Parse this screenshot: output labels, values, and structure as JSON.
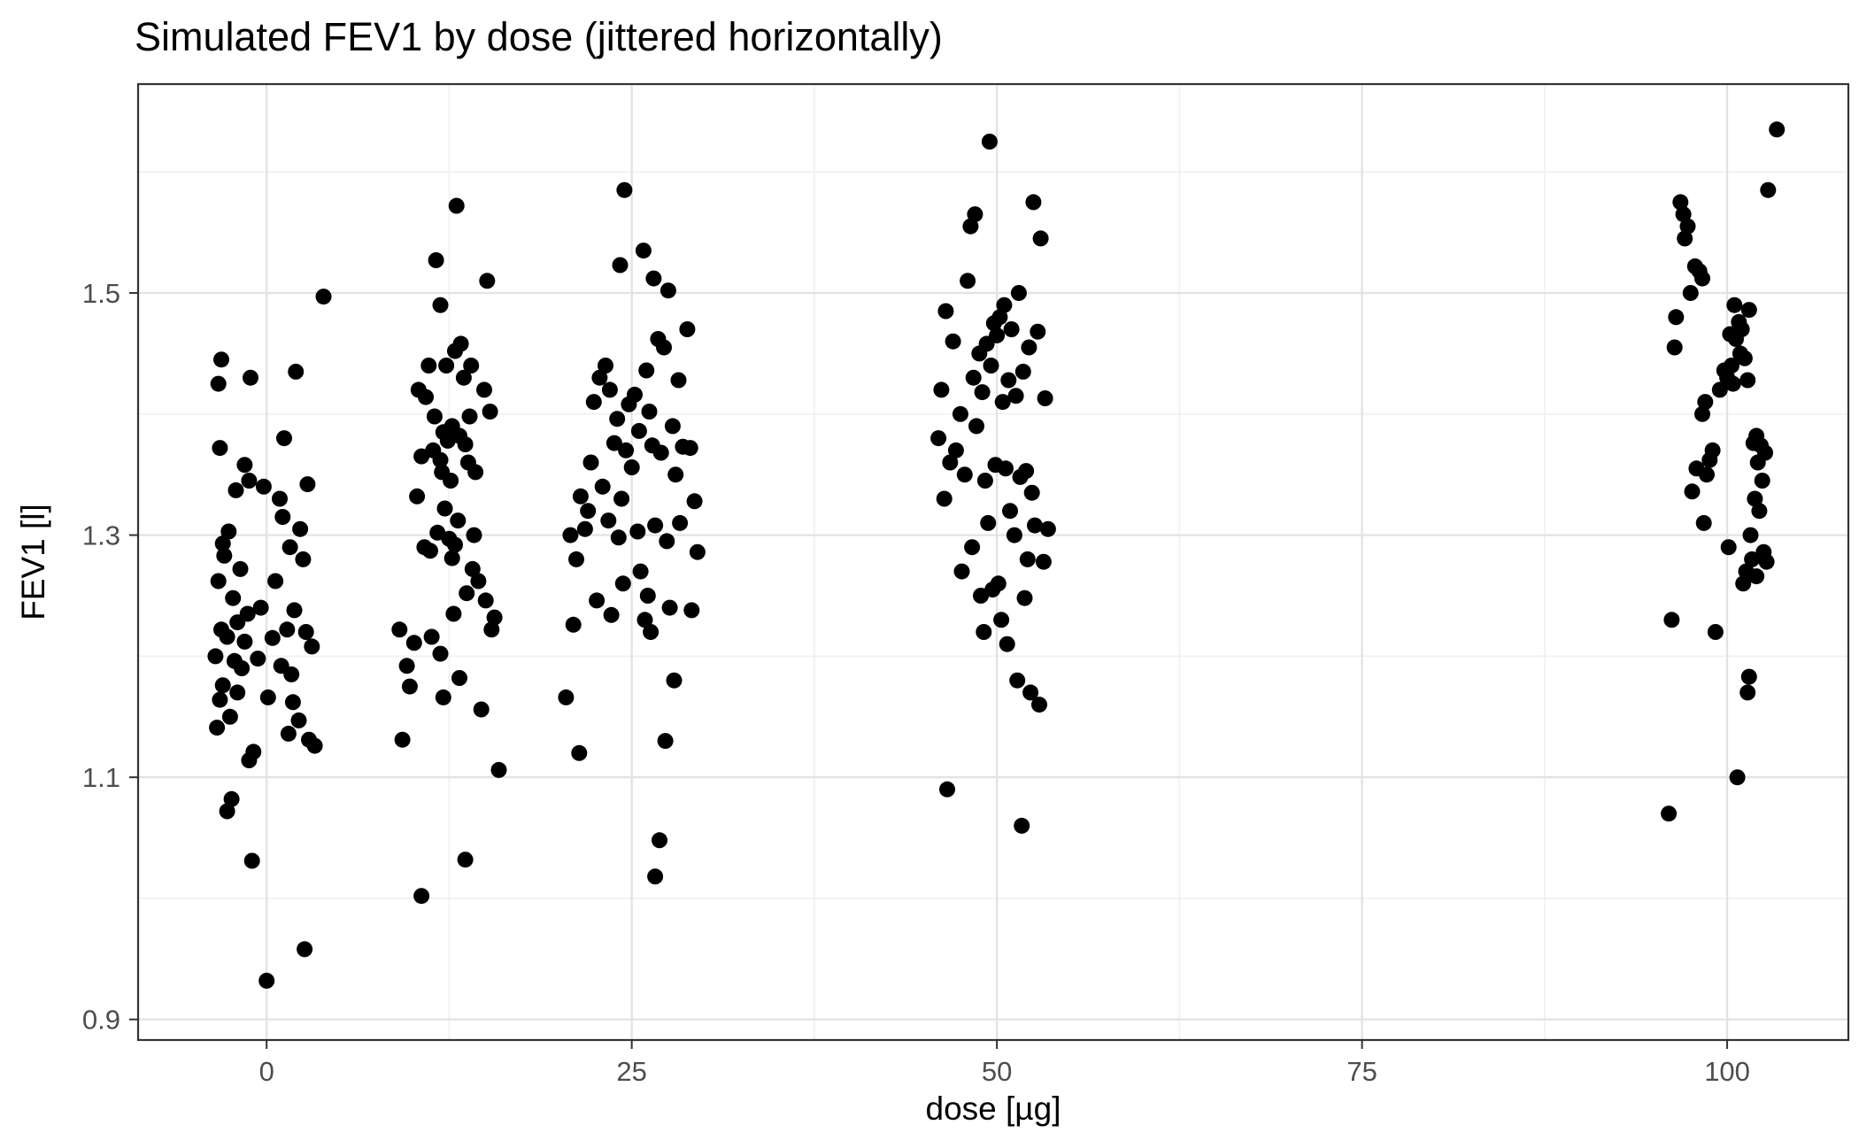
{
  "chart_data": {
    "type": "scatter",
    "title": "Simulated FEV1 by dose (jittered horizontally)",
    "xlabel": "dose [µg]",
    "ylabel": "FEV1 [l]",
    "xlim": [
      -8.8,
      108.3
    ],
    "ylim": [
      0.883,
      1.6725
    ],
    "grid": true,
    "legend": "none",
    "dose_groups": [
      0,
      12.5,
      25,
      50,
      100
    ],
    "x_ticks": [
      {
        "value": 0,
        "label": "0"
      },
      {
        "value": 25,
        "label": "25"
      },
      {
        "value": 50,
        "label": "50"
      },
      {
        "value": 75,
        "label": "75"
      },
      {
        "value": 100,
        "label": "100"
      }
    ],
    "y_ticks": [
      {
        "value": 0.9,
        "label": "0.9"
      },
      {
        "value": 1.1,
        "label": "1.1"
      },
      {
        "value": 1.3,
        "label": "1.3"
      },
      {
        "value": 1.5,
        "label": "1.5"
      }
    ],
    "x_minor": [
      12.5,
      37.5,
      62.5,
      87.5
    ],
    "y_minor": [
      1.0,
      1.2,
      1.4,
      1.6
    ],
    "colors": {
      "point": "#000000",
      "panel_border": "#333333",
      "grid_major": "#e2e2e2",
      "grid_minor": "#f0f0f0",
      "tick_label": "#4d4d4d",
      "tick_mark": "#333333",
      "background": "#ffffff"
    },
    "series": [
      {
        "name": "dose 0",
        "dose": 0,
        "points": [
          [
            -3.1,
            1.445
          ],
          [
            -3.3,
            1.425
          ],
          [
            -1.1,
            1.43
          ],
          [
            2.0,
            1.435
          ],
          [
            3.9,
            1.497
          ],
          [
            1.2,
            1.38
          ],
          [
            -3.2,
            1.372
          ],
          [
            -1.5,
            1.358
          ],
          [
            -1.2,
            1.345
          ],
          [
            -2.1,
            1.337
          ],
          [
            0.9,
            1.33
          ],
          [
            2.8,
            1.342
          ],
          [
            -0.2,
            1.34
          ],
          [
            1.1,
            1.315
          ],
          [
            2.3,
            1.305
          ],
          [
            -2.6,
            1.303
          ],
          [
            -3.0,
            1.293
          ],
          [
            1.6,
            1.29
          ],
          [
            -2.9,
            1.283
          ],
          [
            2.5,
            1.28
          ],
          [
            -1.8,
            1.272
          ],
          [
            -3.3,
            1.262
          ],
          [
            0.6,
            1.262
          ],
          [
            -2.3,
            1.248
          ],
          [
            -0.4,
            1.24
          ],
          [
            -1.3,
            1.235
          ],
          [
            1.9,
            1.238
          ],
          [
            -2.0,
            1.228
          ],
          [
            -3.1,
            1.222
          ],
          [
            -2.7,
            1.216
          ],
          [
            -1.5,
            1.212
          ],
          [
            0.4,
            1.215
          ],
          [
            1.4,
            1.222
          ],
          [
            2.7,
            1.22
          ],
          [
            3.1,
            1.208
          ],
          [
            -3.5,
            1.2
          ],
          [
            -2.2,
            1.196
          ],
          [
            -0.6,
            1.198
          ],
          [
            -1.7,
            1.19
          ],
          [
            1.0,
            1.192
          ],
          [
            1.7,
            1.185
          ],
          [
            -3.0,
            1.176
          ],
          [
            -2.0,
            1.17
          ],
          [
            -3.2,
            1.164
          ],
          [
            0.1,
            1.166
          ],
          [
            1.8,
            1.162
          ],
          [
            -2.5,
            1.15
          ],
          [
            2.2,
            1.147
          ],
          [
            -3.4,
            1.141
          ],
          [
            1.5,
            1.136
          ],
          [
            2.9,
            1.131
          ],
          [
            3.3,
            1.126
          ],
          [
            -0.9,
            1.121
          ],
          [
            -1.2,
            1.114
          ],
          [
            -2.4,
            1.082
          ],
          [
            -2.7,
            1.072
          ],
          [
            -1.0,
            1.031
          ],
          [
            2.6,
            0.958
          ],
          [
            0.0,
            0.932
          ]
        ]
      },
      {
        "name": "dose 12.5",
        "dose": 12.5,
        "points": [
          [
            13.0,
            1.572
          ],
          [
            11.6,
            1.527
          ],
          [
            15.1,
            1.51
          ],
          [
            11.9,
            1.49
          ],
          [
            13.3,
            1.458
          ],
          [
            12.9,
            1.452
          ],
          [
            11.1,
            1.44
          ],
          [
            14.0,
            1.44
          ],
          [
            12.3,
            1.44
          ],
          [
            13.5,
            1.43
          ],
          [
            14.9,
            1.42
          ],
          [
            10.4,
            1.42
          ],
          [
            10.9,
            1.414
          ],
          [
            15.3,
            1.402
          ],
          [
            13.9,
            1.398
          ],
          [
            11.5,
            1.398
          ],
          [
            12.7,
            1.39
          ],
          [
            12.1,
            1.385
          ],
          [
            13.2,
            1.382
          ],
          [
            12.4,
            1.378
          ],
          [
            13.6,
            1.375
          ],
          [
            11.4,
            1.37
          ],
          [
            10.6,
            1.365
          ],
          [
            11.9,
            1.362
          ],
          [
            13.8,
            1.36
          ],
          [
            14.3,
            1.352
          ],
          [
            12.0,
            1.352
          ],
          [
            12.6,
            1.345
          ],
          [
            10.3,
            1.332
          ],
          [
            12.2,
            1.322
          ],
          [
            13.1,
            1.312
          ],
          [
            11.7,
            1.302
          ],
          [
            14.2,
            1.3
          ],
          [
            12.5,
            1.297
          ],
          [
            12.9,
            1.292
          ],
          [
            10.8,
            1.29
          ],
          [
            11.2,
            1.287
          ],
          [
            12.7,
            1.281
          ],
          [
            14.1,
            1.272
          ],
          [
            14.5,
            1.262
          ],
          [
            13.7,
            1.252
          ],
          [
            15.0,
            1.246
          ],
          [
            12.8,
            1.235
          ],
          [
            15.6,
            1.232
          ],
          [
            9.1,
            1.222
          ],
          [
            15.4,
            1.222
          ],
          [
            11.3,
            1.216
          ],
          [
            10.1,
            1.211
          ],
          [
            11.9,
            1.202
          ],
          [
            9.6,
            1.192
          ],
          [
            13.2,
            1.182
          ],
          [
            9.8,
            1.175
          ],
          [
            12.1,
            1.166
          ],
          [
            14.7,
            1.156
          ],
          [
            9.3,
            1.131
          ],
          [
            15.9,
            1.106
          ],
          [
            13.6,
            1.032
          ],
          [
            10.6,
            1.002
          ]
        ]
      },
      {
        "name": "dose 25",
        "dose": 25,
        "points": [
          [
            24.5,
            1.585
          ],
          [
            25.8,
            1.535
          ],
          [
            24.2,
            1.523
          ],
          [
            26.5,
            1.512
          ],
          [
            27.5,
            1.502
          ],
          [
            28.8,
            1.47
          ],
          [
            26.8,
            1.462
          ],
          [
            27.2,
            1.455
          ],
          [
            23.2,
            1.44
          ],
          [
            26.0,
            1.436
          ],
          [
            22.8,
            1.43
          ],
          [
            28.2,
            1.428
          ],
          [
            23.5,
            1.42
          ],
          [
            25.2,
            1.416
          ],
          [
            22.4,
            1.41
          ],
          [
            24.8,
            1.408
          ],
          [
            26.2,
            1.402
          ],
          [
            24.0,
            1.396
          ],
          [
            27.8,
            1.39
          ],
          [
            25.5,
            1.386
          ],
          [
            23.8,
            1.376
          ],
          [
            26.4,
            1.374
          ],
          [
            28.5,
            1.373
          ],
          [
            29.0,
            1.372
          ],
          [
            24.6,
            1.37
          ],
          [
            27.0,
            1.368
          ],
          [
            22.2,
            1.36
          ],
          [
            25.0,
            1.356
          ],
          [
            28.0,
            1.35
          ],
          [
            23.0,
            1.34
          ],
          [
            21.5,
            1.332
          ],
          [
            24.3,
            1.33
          ],
          [
            29.3,
            1.328
          ],
          [
            22.0,
            1.32
          ],
          [
            23.4,
            1.312
          ],
          [
            28.3,
            1.31
          ],
          [
            26.6,
            1.308
          ],
          [
            21.8,
            1.305
          ],
          [
            25.4,
            1.303
          ],
          [
            20.8,
            1.3
          ],
          [
            24.1,
            1.298
          ],
          [
            27.4,
            1.295
          ],
          [
            29.5,
            1.286
          ],
          [
            21.2,
            1.28
          ],
          [
            25.6,
            1.27
          ],
          [
            24.4,
            1.26
          ],
          [
            26.1,
            1.25
          ],
          [
            22.6,
            1.246
          ],
          [
            27.6,
            1.24
          ],
          [
            29.1,
            1.238
          ],
          [
            23.6,
            1.234
          ],
          [
            25.9,
            1.23
          ],
          [
            21.0,
            1.226
          ],
          [
            26.3,
            1.22
          ],
          [
            27.9,
            1.18
          ],
          [
            20.5,
            1.166
          ],
          [
            27.3,
            1.13
          ],
          [
            21.4,
            1.12
          ],
          [
            26.9,
            1.048
          ],
          [
            26.6,
            1.018
          ]
        ]
      },
      {
        "name": "dose 50",
        "dose": 50,
        "points": [
          [
            49.5,
            1.625
          ],
          [
            52.5,
            1.575
          ],
          [
            48.5,
            1.565
          ],
          [
            48.2,
            1.555
          ],
          [
            53.0,
            1.545
          ],
          [
            48.0,
            1.51
          ],
          [
            51.5,
            1.5
          ],
          [
            50.5,
            1.49
          ],
          [
            46.5,
            1.485
          ],
          [
            50.2,
            1.48
          ],
          [
            49.8,
            1.475
          ],
          [
            51.0,
            1.47
          ],
          [
            52.8,
            1.468
          ],
          [
            50.0,
            1.465
          ],
          [
            47.0,
            1.46
          ],
          [
            49.3,
            1.458
          ],
          [
            52.2,
            1.455
          ],
          [
            48.8,
            1.45
          ],
          [
            49.6,
            1.44
          ],
          [
            51.8,
            1.435
          ],
          [
            48.4,
            1.43
          ],
          [
            50.8,
            1.428
          ],
          [
            46.2,
            1.42
          ],
          [
            49.0,
            1.418
          ],
          [
            51.3,
            1.415
          ],
          [
            53.3,
            1.413
          ],
          [
            50.4,
            1.41
          ],
          [
            47.5,
            1.4
          ],
          [
            48.6,
            1.39
          ],
          [
            46.0,
            1.38
          ],
          [
            47.2,
            1.37
          ],
          [
            46.8,
            1.36
          ],
          [
            49.9,
            1.358
          ],
          [
            50.6,
            1.355
          ],
          [
            52.0,
            1.353
          ],
          [
            47.8,
            1.35
          ],
          [
            51.6,
            1.348
          ],
          [
            49.2,
            1.345
          ],
          [
            52.4,
            1.335
          ],
          [
            46.4,
            1.33
          ],
          [
            50.9,
            1.32
          ],
          [
            49.4,
            1.31
          ],
          [
            52.6,
            1.308
          ],
          [
            53.5,
            1.305
          ],
          [
            51.2,
            1.3
          ],
          [
            48.3,
            1.29
          ],
          [
            52.1,
            1.28
          ],
          [
            53.2,
            1.278
          ],
          [
            47.6,
            1.27
          ],
          [
            50.1,
            1.26
          ],
          [
            49.7,
            1.255
          ],
          [
            48.9,
            1.25
          ],
          [
            51.9,
            1.248
          ],
          [
            50.3,
            1.23
          ],
          [
            49.1,
            1.22
          ],
          [
            50.7,
            1.21
          ],
          [
            51.4,
            1.18
          ],
          [
            52.3,
            1.17
          ],
          [
            52.9,
            1.16
          ],
          [
            46.6,
            1.09
          ],
          [
            51.7,
            1.06
          ]
        ]
      },
      {
        "name": "dose 100",
        "dose": 100,
        "points": [
          [
            103.4,
            1.635
          ],
          [
            102.8,
            1.585
          ],
          [
            96.8,
            1.575
          ],
          [
            97.0,
            1.565
          ],
          [
            97.3,
            1.555
          ],
          [
            97.1,
            1.545
          ],
          [
            97.8,
            1.522
          ],
          [
            98.1,
            1.518
          ],
          [
            98.3,
            1.512
          ],
          [
            97.5,
            1.5
          ],
          [
            100.5,
            1.49
          ],
          [
            101.5,
            1.486
          ],
          [
            96.5,
            1.48
          ],
          [
            100.8,
            1.476
          ],
          [
            101.0,
            1.47
          ],
          [
            100.2,
            1.466
          ],
          [
            100.6,
            1.462
          ],
          [
            96.4,
            1.455
          ],
          [
            100.9,
            1.45
          ],
          [
            101.2,
            1.446
          ],
          [
            100.3,
            1.44
          ],
          [
            99.8,
            1.436
          ],
          [
            100.0,
            1.43
          ],
          [
            101.4,
            1.428
          ],
          [
            100.4,
            1.425
          ],
          [
            99.5,
            1.42
          ],
          [
            98.5,
            1.41
          ],
          [
            98.3,
            1.4
          ],
          [
            102.0,
            1.382
          ],
          [
            101.8,
            1.376
          ],
          [
            102.3,
            1.374
          ],
          [
            99.0,
            1.37
          ],
          [
            102.6,
            1.368
          ],
          [
            98.8,
            1.362
          ],
          [
            102.1,
            1.36
          ],
          [
            97.9,
            1.355
          ],
          [
            98.6,
            1.35
          ],
          [
            102.4,
            1.345
          ],
          [
            97.6,
            1.336
          ],
          [
            101.9,
            1.33
          ],
          [
            102.2,
            1.32
          ],
          [
            98.4,
            1.31
          ],
          [
            101.6,
            1.3
          ],
          [
            100.1,
            1.29
          ],
          [
            102.5,
            1.286
          ],
          [
            101.7,
            1.28
          ],
          [
            102.7,
            1.278
          ],
          [
            101.3,
            1.27
          ],
          [
            102.0,
            1.266
          ],
          [
            101.1,
            1.26
          ],
          [
            96.2,
            1.23
          ],
          [
            99.2,
            1.22
          ],
          [
            101.5,
            1.183
          ],
          [
            101.4,
            1.17
          ],
          [
            100.7,
            1.1
          ],
          [
            96.0,
            1.07
          ]
        ]
      }
    ]
  }
}
